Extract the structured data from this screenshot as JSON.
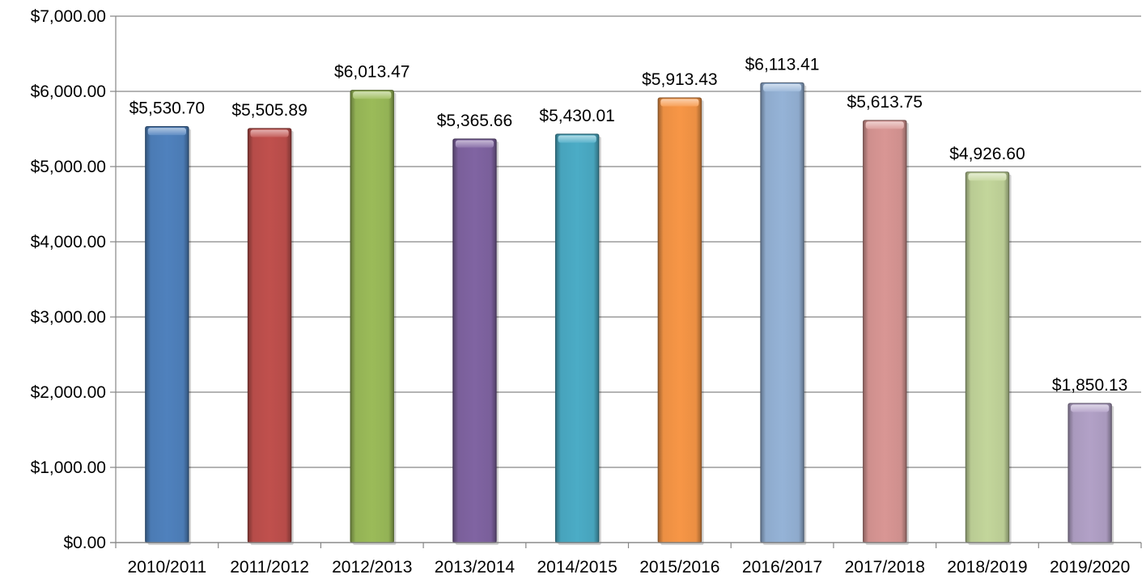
{
  "chart_data": {
    "type": "bar",
    "title": "",
    "xlabel": "",
    "ylabel": "",
    "categories": [
      "2010/2011",
      "2011/2012",
      "2012/2013",
      "2013/2014",
      "2014/2015",
      "2015/2016",
      "2016/2017",
      "2017/2018",
      "2018/2019",
      "2019/2020"
    ],
    "values": [
      5530.7,
      5505.89,
      6013.47,
      5365.66,
      5430.01,
      5913.43,
      6113.41,
      5613.75,
      4926.6,
      1850.13
    ],
    "data_labels": [
      "$5,530.70",
      "$5,505.89",
      "$6,013.47",
      "$5,365.66",
      "$5,430.01",
      "$5,913.43",
      "$6,113.41",
      "$5,613.75",
      "$4,926.60",
      "$1,850.13"
    ],
    "ylim": [
      0,
      7000
    ],
    "y_ticks": [
      0,
      1000,
      2000,
      3000,
      4000,
      5000,
      6000,
      7000
    ],
    "y_tick_labels": [
      "$0.00",
      "$1,000.00",
      "$2,000.00",
      "$3,000.00",
      "$4,000.00",
      "$5,000.00",
      "$6,000.00",
      "$7,000.00"
    ],
    "bar_colors": [
      "#4F81BD",
      "#C0504D",
      "#9BBB59",
      "#8064A2",
      "#4BACC6",
      "#F79646",
      "#95B3D7",
      "#D99694",
      "#C3D69B",
      "#B2A1C7"
    ],
    "grid": true,
    "legend": "none"
  }
}
